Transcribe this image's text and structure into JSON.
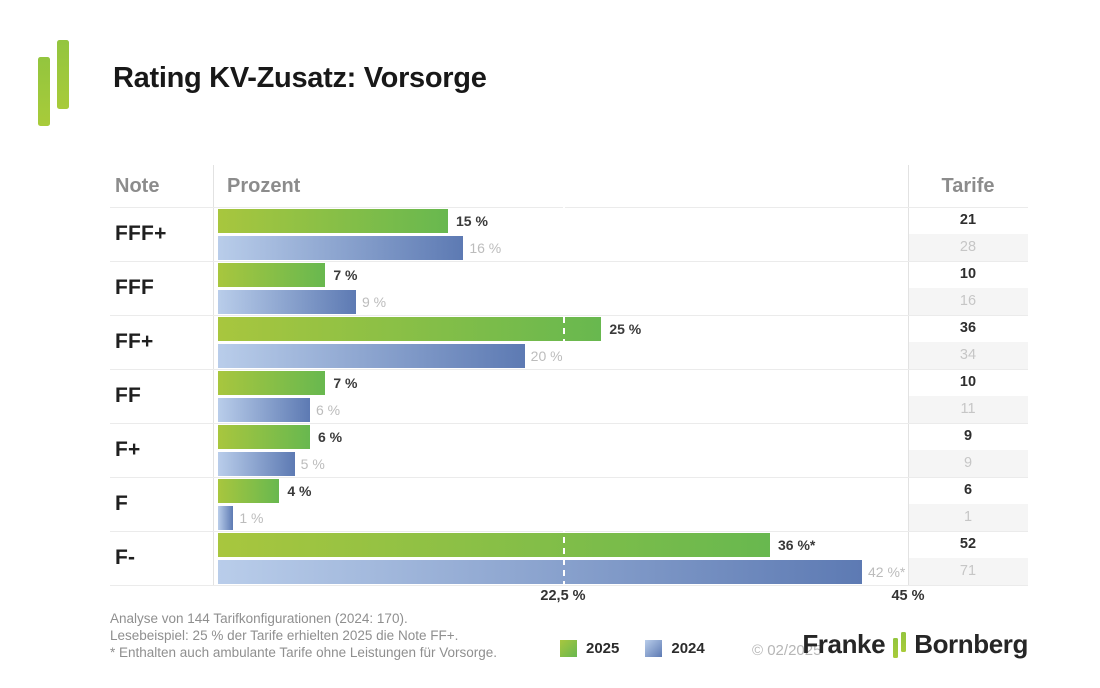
{
  "title": "Rating KV-Zusatz: Vorsorge",
  "table": {
    "col_note": "Note",
    "col_prozent": "Prozent",
    "col_tarife": "Tarife"
  },
  "chart_data": {
    "type": "bar",
    "orientation": "horizontal",
    "title": "Rating KV-Zusatz: Vorsorge",
    "categories": [
      "FFF+",
      "FFF",
      "FF+",
      "FF",
      "F+",
      "F",
      "F-"
    ],
    "axis_max": 45,
    "axis_ticks": [
      "22,5 %",
      "45 %"
    ],
    "tick_values": [
      22.5,
      45
    ],
    "reference_line": {
      "value": 22.5,
      "style": "dashed"
    },
    "grid": "row-separators",
    "legend_position": "bottom",
    "series": [
      {
        "name": "2025",
        "color_start": "#a8c63e",
        "color_end": "#68b84f",
        "values": [
          15,
          7,
          25,
          7,
          6,
          4,
          36
        ],
        "labels": [
          "15 %",
          "7 %",
          "25 %",
          "7 %",
          "6 %",
          "4 %",
          "36 %*"
        ],
        "tarife": [
          21,
          10,
          36,
          10,
          9,
          6,
          52
        ]
      },
      {
        "name": "2024",
        "color_start": "#b9cdea",
        "color_end": "#5d7ab3",
        "values": [
          16,
          9,
          20,
          6,
          5,
          1,
          42
        ],
        "labels": [
          "16 %",
          "9 %",
          "20 %",
          "6 %",
          "5 %",
          "1 %",
          "42 %*"
        ],
        "tarife": [
          28,
          16,
          34,
          11,
          9,
          1,
          71
        ]
      }
    ]
  },
  "footnotes": [
    "Analyse von 144 Tarifkonfigurationen (2024: 170).",
    "Lesebeispiel: 25 % der Tarife erhielten 2025 die Note FF+.",
    "* Enthalten auch ambulante Tarife ohne Leistungen für Vorsorge."
  ],
  "legend": [
    {
      "label": "2025"
    },
    {
      "label": "2024"
    }
  ],
  "copyright": "© 02/2025",
  "brand": {
    "name_left": "Franke",
    "name_right": "Bornberg",
    "green": "#93c53e",
    "green2": "#a8cb3a"
  }
}
